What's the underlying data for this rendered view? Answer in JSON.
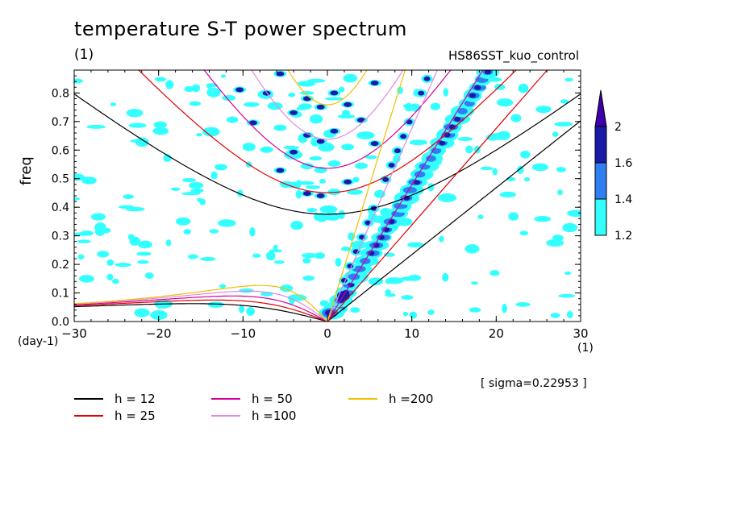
{
  "chart_data": {
    "type": "heatmap",
    "title": "temperature S-T power spectrum",
    "subtitle": "(1)",
    "case_name": "HS86SST_kuo_control",
    "xlabel": "wvn",
    "ylabel": "freq",
    "x_unit": "(1)",
    "y_unit": "(day-1)",
    "xlim": [
      -30,
      30
    ],
    "ylim": [
      0,
      0.88
    ],
    "xticks": [
      "-30",
      "-20",
      "-10",
      "0",
      "10",
      "20",
      "30"
    ],
    "yticks": [
      "0.0",
      "0.1",
      "0.2",
      "0.3",
      "0.4",
      "0.5",
      "0.6",
      "0.7",
      "0.8"
    ],
    "annotation": "[ sigma=0.22953 ]",
    "colorbar": {
      "levels": [
        "1.2",
        "1.4",
        "1.6",
        "2"
      ],
      "colors": [
        "#33ffff",
        "#2f7ff2",
        "#1a1aa8",
        "#3d00aa"
      ]
    },
    "dispersion_curves": [
      {
        "name": "h = 12",
        "h": 12,
        "color": "#000000"
      },
      {
        "name": "h = 25",
        "h": 25,
        "color": "#e00000"
      },
      {
        "name": "h = 50",
        "h": 50,
        "color": "#d4009c"
      },
      {
        "name": "h =100",
        "h": 100,
        "color": "#e08ae0"
      },
      {
        "name": "h =200",
        "h": 200,
        "color": "#f0c000"
      }
    ]
  }
}
